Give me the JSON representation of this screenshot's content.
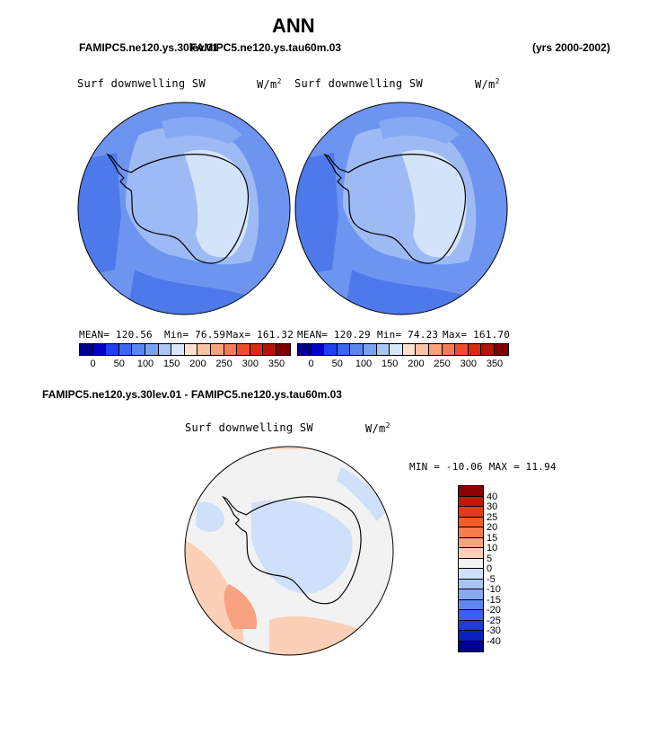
{
  "title": "ANN",
  "header": {
    "case_left": "FAMIPC5.ne120.ys.30lev.01",
    "case_overlap": "FAMIPC5.ne120.ys.tau60m.03",
    "years": "(yrs 2000-2002)"
  },
  "panels": [
    {
      "label": "Surf downwelling SW",
      "units": "W/m",
      "units_exp": "2",
      "stats": {
        "mean": "MEAN= 120.56",
        "min": "Min=  76.59",
        "max": "Max= 161.32"
      }
    },
    {
      "label": "Surf downwelling SW",
      "units": "W/m",
      "units_exp": "2",
      "stats": {
        "mean": "MEAN= 120.29",
        "min": "Min=  74.23",
        "max": "Max= 161.70"
      }
    }
  ],
  "colorbar": {
    "colors": [
      "#00008b",
      "#0000c8",
      "#1f3ff0",
      "#3a66f0",
      "#5a86f0",
      "#7aa2f2",
      "#a9c4f5",
      "#d8e6fa",
      "#fde0cd",
      "#fcc2a4",
      "#f9a07c",
      "#f77a55",
      "#ee4f2e",
      "#d92b12",
      "#b31407",
      "#7f0000"
    ],
    "tick_labels": [
      "0",
      "50",
      "100",
      "150",
      "200",
      "250",
      "300",
      "350"
    ]
  },
  "diff": {
    "case_label": "FAMIPC5.ne120.ys.30lev.01 - FAMIPC5.ne120.ys.tau60m.03",
    "label": "Surf downwelling SW",
    "units": "W/m",
    "units_exp": "2",
    "minmax": "MIN = -10.06 MAX =  11.94",
    "colorbar": {
      "colors": [
        "#8b0000",
        "#c01a05",
        "#e63a12",
        "#f45b2a",
        "#f57c4f",
        "#f8a27f",
        "#fcd0b6",
        "#f2f2f2",
        "#cfe0fa",
        "#a8c4f6",
        "#8aa8f4",
        "#5f84f0",
        "#3c5ff0",
        "#1f3adf",
        "#0a1fbf",
        "#00008b"
      ],
      "tick_labels": [
        "40",
        "30",
        "25",
        "20",
        "15",
        "10",
        "5",
        "0",
        "-5",
        "-10",
        "-15",
        "-20",
        "-25",
        "-30",
        "-40"
      ]
    }
  }
}
